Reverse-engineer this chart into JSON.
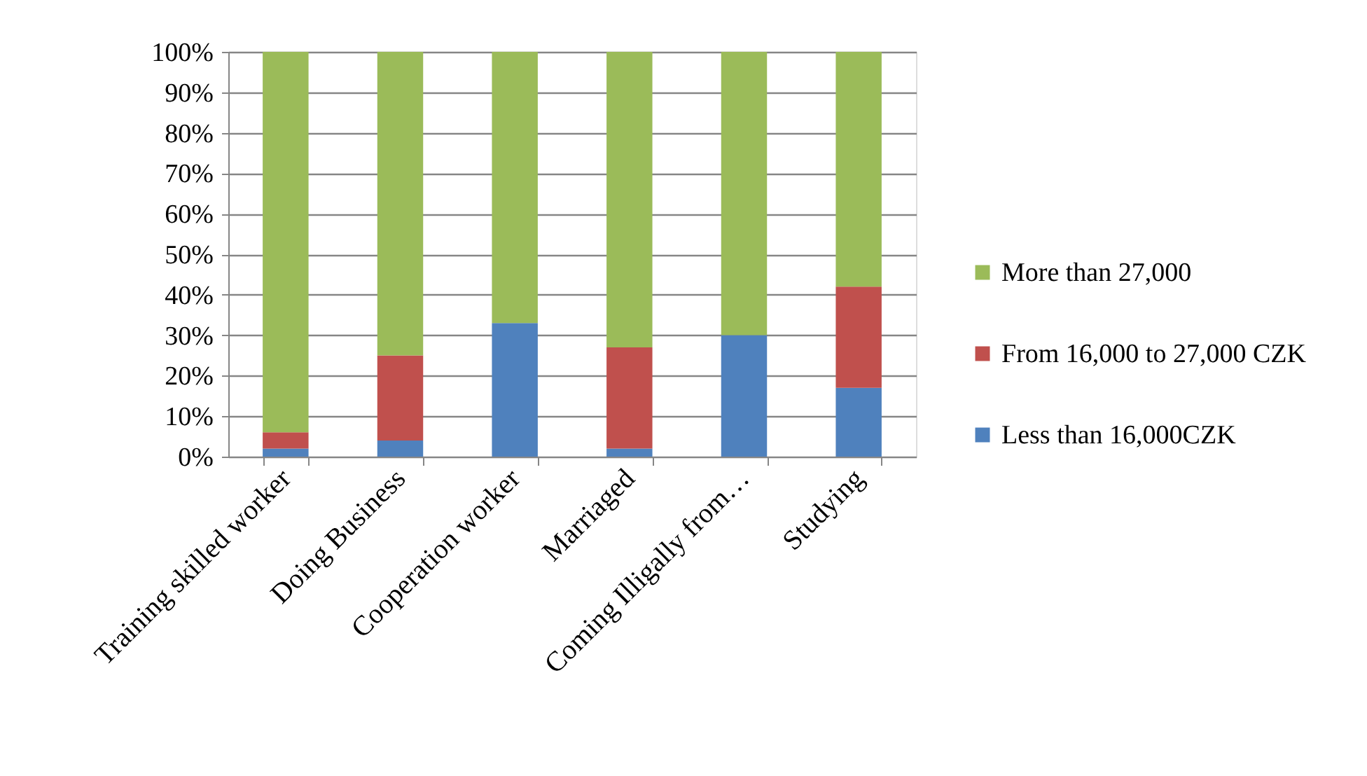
{
  "chart_data": {
    "type": "bar",
    "stacked": true,
    "categories": [
      "Training skilled worker",
      "Doing Business",
      "Cooperation worker",
      "Marriaged",
      "Coming Illigally from…",
      "Studying"
    ],
    "series": [
      {
        "name": "Less than 16,000CZK",
        "color": "#4f81bd",
        "values": [
          2,
          4,
          33,
          2,
          30,
          17
        ]
      },
      {
        "name": "From 16,000 to 27,000 CZK",
        "color": "#c0504d",
        "values": [
          4,
          21,
          0,
          25,
          0,
          25
        ]
      },
      {
        "name": "More than 27,000",
        "color": "#9bbb59",
        "values": [
          94,
          75,
          67,
          73,
          70,
          58
        ]
      }
    ],
    "ylim": [
      0,
      100
    ],
    "yticks": [
      {
        "value": 0,
        "label": "0%"
      },
      {
        "value": 10,
        "label": "10%"
      },
      {
        "value": 20,
        "label": "20%"
      },
      {
        "value": 30,
        "label": "30%"
      },
      {
        "value": 40,
        "label": "40%"
      },
      {
        "value": 50,
        "label": "50%"
      },
      {
        "value": 60,
        "label": "60%"
      },
      {
        "value": 70,
        "label": "70%"
      },
      {
        "value": 80,
        "label": "80%"
      },
      {
        "value": 90,
        "label": "90%"
      },
      {
        "value": 100,
        "label": "100%"
      }
    ],
    "grid": "y",
    "legend": "right"
  }
}
